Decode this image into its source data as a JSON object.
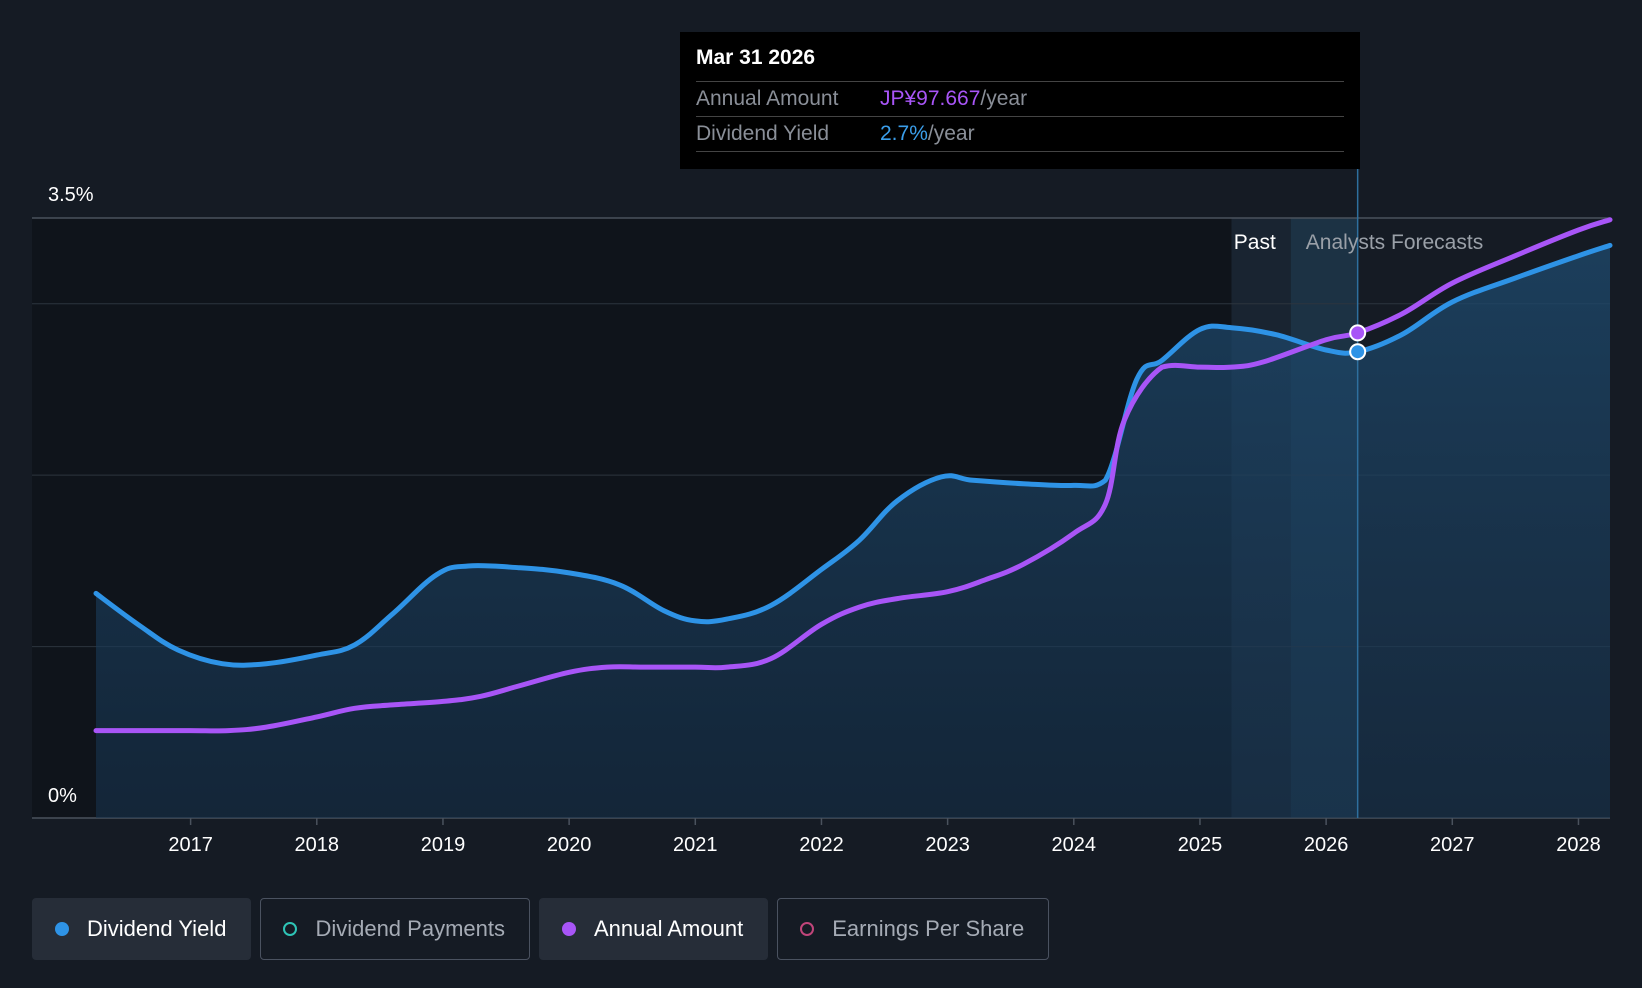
{
  "tooltip": {
    "date": "Mar 31 2026",
    "rows": [
      {
        "label": "Annual Amount",
        "value": "JP¥97.667",
        "unit": "/year"
      },
      {
        "label": "Dividend Yield",
        "value": "2.7%",
        "unit": "/year"
      }
    ]
  },
  "chart_data": {
    "type": "line",
    "y_axis": {
      "ylim": [
        0,
        3.5
      ],
      "unit": "%",
      "labels": [
        "3.5%",
        "0%"
      ],
      "gridlines": [
        0,
        1.0,
        2.0,
        3.0,
        3.5
      ]
    },
    "x_axis": {
      "tick_labels": [
        "2017",
        "2018",
        "2019",
        "2020",
        "2021",
        "2022",
        "2023",
        "2024",
        "2025",
        "2026",
        "2027",
        "2028"
      ],
      "tick_values": [
        2017,
        2018,
        2019,
        2020,
        2021,
        2022,
        2023,
        2024,
        2025,
        2026,
        2027,
        2028
      ],
      "xlim": [
        2015.6,
        2028.25
      ]
    },
    "regions": {
      "past_label": "Past",
      "forecast_label": "Analysts Forecasts",
      "past_start": 2025.25,
      "forecast_start": 2025.72,
      "cursor": 2026.25
    },
    "series": [
      {
        "name": "Dividend Yield",
        "color": "#2e93e6",
        "fill": true,
        "x": [
          2016.25,
          2016.6,
          2016.9,
          2017.25,
          2017.6,
          2018.0,
          2018.3,
          2018.6,
          2018.95,
          2019.2,
          2019.6,
          2020.0,
          2020.4,
          2020.75,
          2021.0,
          2021.25,
          2021.6,
          2022.0,
          2022.3,
          2022.6,
          2022.95,
          2023.2,
          2023.6,
          2024.0,
          2024.25,
          2024.5,
          2024.7,
          2025.0,
          2025.25,
          2025.6,
          2026.0,
          2026.25,
          2026.6,
          2027.0,
          2027.5,
          2028.0,
          2028.25
        ],
        "y": [
          1.31,
          1.12,
          0.98,
          0.9,
          0.9,
          0.95,
          1.01,
          1.19,
          1.42,
          1.47,
          1.46,
          1.43,
          1.36,
          1.21,
          1.15,
          1.16,
          1.24,
          1.45,
          1.62,
          1.85,
          1.99,
          1.97,
          1.95,
          1.94,
          1.97,
          2.56,
          2.67,
          2.85,
          2.86,
          2.82,
          2.73,
          2.72,
          2.82,
          3.01,
          3.15,
          3.28,
          3.34
        ]
      },
      {
        "name": "Annual Amount",
        "color": "#a855f7",
        "fill": false,
        "x": [
          2016.25,
          2016.6,
          2017.0,
          2017.3,
          2017.6,
          2018.0,
          2018.3,
          2018.6,
          2019.0,
          2019.3,
          2019.6,
          2020.0,
          2020.3,
          2020.6,
          2021.0,
          2021.25,
          2021.6,
          2022.0,
          2022.3,
          2022.6,
          2023.0,
          2023.3,
          2023.6,
          2024.0,
          2024.25,
          2024.4,
          2024.7,
          2025.0,
          2025.25,
          2025.5,
          2026.0,
          2026.25,
          2026.6,
          2027.0,
          2027.5,
          2028.0,
          2028.25
        ],
        "y": [
          0.51,
          0.51,
          0.51,
          0.51,
          0.53,
          0.59,
          0.64,
          0.66,
          0.68,
          0.71,
          0.77,
          0.85,
          0.88,
          0.88,
          0.88,
          0.88,
          0.93,
          1.13,
          1.23,
          1.28,
          1.32,
          1.39,
          1.48,
          1.66,
          1.83,
          2.32,
          2.63,
          2.63,
          2.63,
          2.66,
          2.79,
          2.83,
          2.94,
          3.12,
          3.28,
          3.43,
          3.49
        ]
      }
    ],
    "markers": [
      {
        "series": "Annual Amount",
        "x": 2026.25,
        "y": 2.83
      },
      {
        "series": "Dividend Yield",
        "x": 2026.25,
        "y": 2.72
      }
    ]
  },
  "legend": [
    {
      "label": "Dividend Yield",
      "color": "#2e93e6",
      "filled": true,
      "active": true
    },
    {
      "label": "Dividend Payments",
      "color": "#2ec4b6",
      "filled": false,
      "active": false
    },
    {
      "label": "Annual Amount",
      "color": "#a855f7",
      "filled": true,
      "active": true
    },
    {
      "label": "Earnings Per Share",
      "color": "#c0457a",
      "filled": false,
      "active": false
    }
  ]
}
